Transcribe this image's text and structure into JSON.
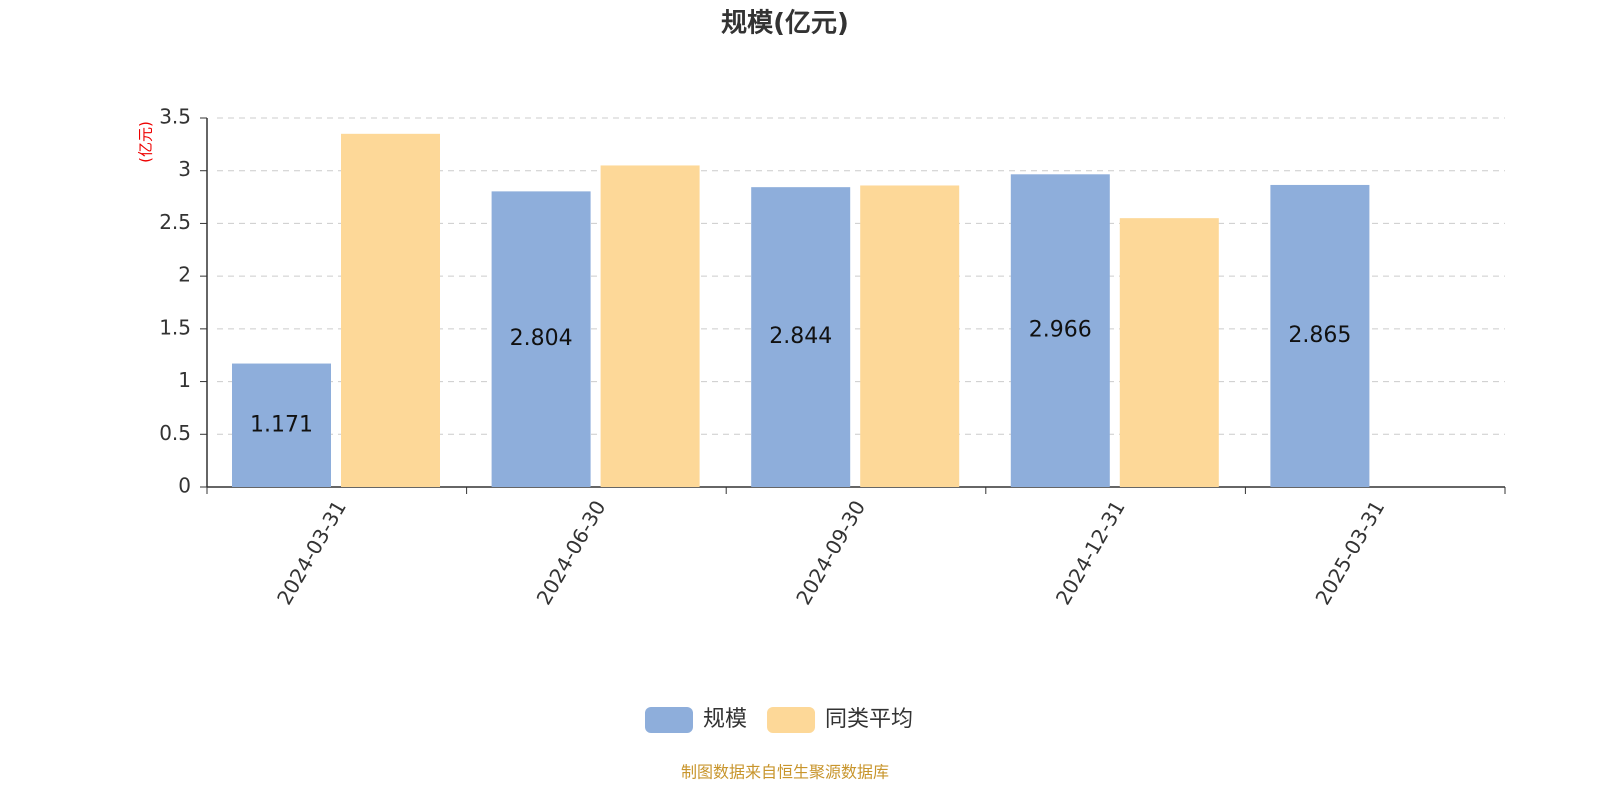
{
  "chart_data": {
    "type": "bar",
    "title": "规模(亿元)",
    "y_unit_label": "(亿元)",
    "categories": [
      "2024-03-31",
      "2024-06-30",
      "2024-09-30",
      "2024-12-31",
      "2025-03-31"
    ],
    "series": [
      {
        "name": "规模",
        "color": "#8eaedb",
        "values": [
          1.171,
          2.804,
          2.844,
          2.966,
          2.865
        ],
        "show_labels": true
      },
      {
        "name": "同类平均",
        "color": "#fdd898",
        "values": [
          3.35,
          3.05,
          2.86,
          2.55,
          null
        ],
        "show_labels": false
      }
    ],
    "ylim": [
      0,
      3.5
    ],
    "yticks": [
      0,
      0.5,
      1,
      1.5,
      2,
      2.5,
      3,
      3.5
    ],
    "grid": true,
    "legend": "bottom",
    "source": "制图数据来自恒生聚源数据库"
  }
}
